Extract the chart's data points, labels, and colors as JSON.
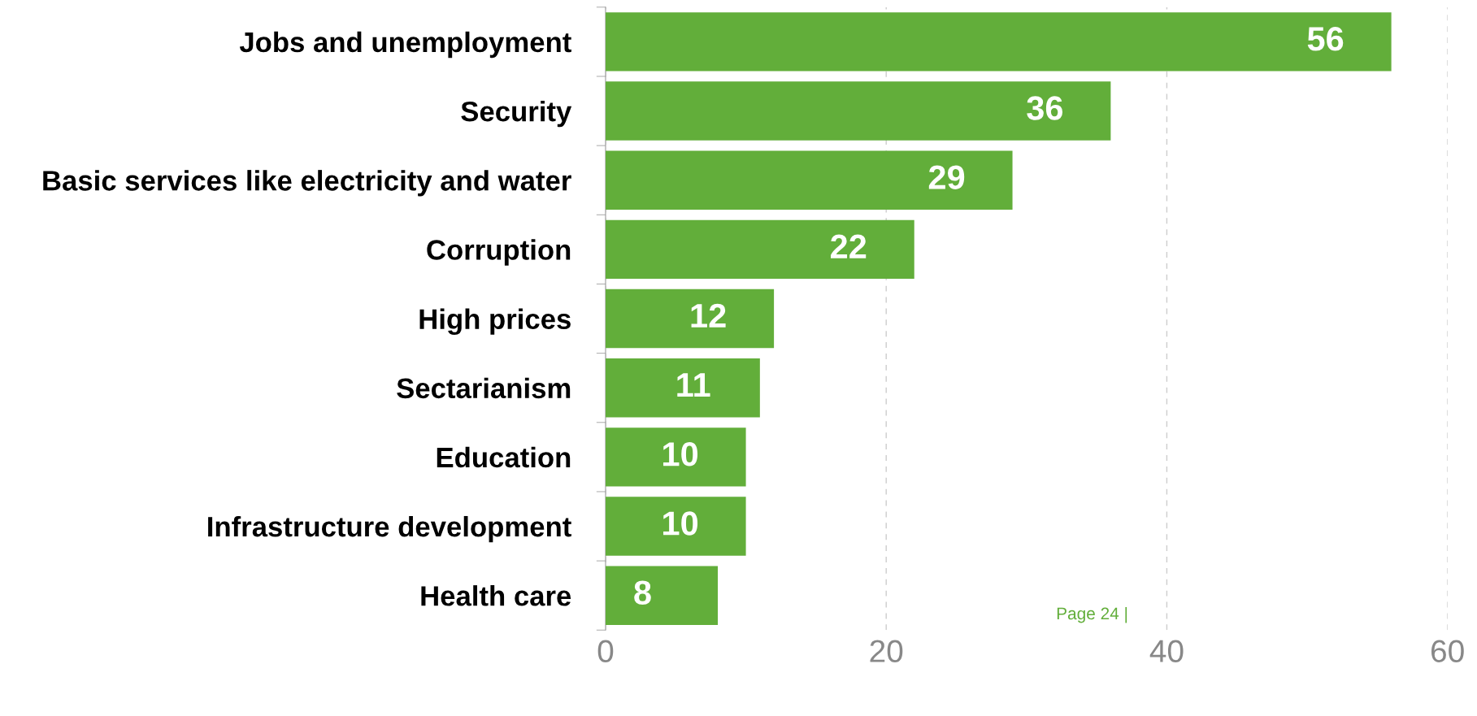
{
  "chart_data": {
    "type": "bar",
    "orientation": "horizontal",
    "categories": [
      "Jobs and unemployment",
      "Security",
      "Basic services like electricity and water",
      "Corruption",
      "High prices",
      "Sectarianism",
      "Education",
      "Infrastructure development",
      "Health care"
    ],
    "values": [
      56,
      36,
      29,
      22,
      12,
      11,
      10,
      10,
      8
    ],
    "color": "#62ae3a",
    "data_labels": true,
    "xlim": [
      0,
      60
    ],
    "xticks": [
      0,
      20,
      40,
      60
    ],
    "grid": "x",
    "annotations": [
      "Page 24 |"
    ]
  }
}
